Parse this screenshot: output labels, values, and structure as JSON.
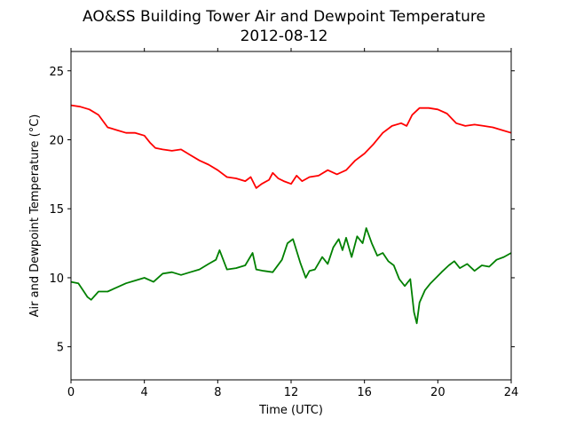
{
  "chart_data": {
    "type": "line",
    "title": "AO&SS Building Tower Air and Dewpoint Temperature",
    "subtitle": "2012-08-12",
    "xlabel": "Time (UTC)",
    "ylabel": "Air and Dewpoint Temperature (°C)",
    "xlim": [
      0,
      24
    ],
    "ylim": [
      2.6,
      26.4
    ],
    "xticks": [
      0,
      4,
      8,
      12,
      16,
      20,
      24
    ],
    "yticks": [
      5,
      10,
      15,
      20,
      25
    ],
    "grid": false,
    "series": [
      {
        "color": "#ff0000",
        "x": [
          0,
          0.5,
          1.0,
          1.5,
          2.0,
          2.5,
          3.0,
          3.5,
          4.0,
          4.3,
          4.6,
          5.0,
          5.5,
          6.0,
          6.5,
          7.0,
          7.5,
          8.0,
          8.5,
          9.0,
          9.5,
          9.8,
          10.1,
          10.4,
          10.8,
          11.0,
          11.3,
          11.6,
          12.0,
          12.3,
          12.6,
          13.0,
          13.5,
          14.0,
          14.5,
          15.0,
          15.5,
          16.0,
          16.5,
          17.0,
          17.5,
          18.0,
          18.3,
          18.6,
          19.0,
          19.5,
          20.0,
          20.5,
          21.0,
          21.5,
          22.0,
          22.5,
          23.0,
          23.5,
          24.0
        ],
        "values": [
          22.5,
          22.4,
          22.2,
          21.8,
          20.9,
          20.7,
          20.5,
          20.5,
          20.3,
          19.8,
          19.4,
          19.3,
          19.2,
          19.3,
          18.9,
          18.5,
          18.2,
          17.8,
          17.3,
          17.2,
          17.0,
          17.3,
          16.5,
          16.8,
          17.1,
          17.6,
          17.2,
          17.0,
          16.8,
          17.4,
          17.0,
          17.3,
          17.4,
          17.8,
          17.5,
          17.8,
          18.5,
          19.0,
          19.7,
          20.5,
          21.0,
          21.2,
          21.0,
          21.8,
          22.3,
          22.3,
          22.2,
          21.9,
          21.2,
          21.0,
          21.1,
          21.0,
          20.9,
          20.7,
          20.5
        ]
      },
      {
        "color": "#008000",
        "x": [
          0,
          0.4,
          0.7,
          0.9,
          1.1,
          1.5,
          2.0,
          2.5,
          3.0,
          3.5,
          4.0,
          4.5,
          5.0,
          5.5,
          6.0,
          6.5,
          7.0,
          7.5,
          7.9,
          8.1,
          8.5,
          9.0,
          9.5,
          9.9,
          10.1,
          10.5,
          11.0,
          11.5,
          11.8,
          12.1,
          12.5,
          12.8,
          13.0,
          13.3,
          13.7,
          14.0,
          14.3,
          14.6,
          14.8,
          15.0,
          15.3,
          15.6,
          15.9,
          16.1,
          16.4,
          16.7,
          17.0,
          17.3,
          17.6,
          17.9,
          18.2,
          18.5,
          18.7,
          18.85,
          19.0,
          19.3,
          19.6,
          19.9,
          20.2,
          20.6,
          20.9,
          21.2,
          21.6,
          22.0,
          22.4,
          22.8,
          23.2,
          23.6,
          24.0
        ],
        "values": [
          9.7,
          9.6,
          9.0,
          8.6,
          8.4,
          9.0,
          9.0,
          9.3,
          9.6,
          9.8,
          10.0,
          9.7,
          10.3,
          10.4,
          10.2,
          10.4,
          10.6,
          11.0,
          11.3,
          12.0,
          10.6,
          10.7,
          10.9,
          11.8,
          10.6,
          10.5,
          10.4,
          11.3,
          12.5,
          12.8,
          11.1,
          10.0,
          10.5,
          10.6,
          11.5,
          11.0,
          12.2,
          12.8,
          12.0,
          12.9,
          11.5,
          13.0,
          12.5,
          13.6,
          12.5,
          11.6,
          11.8,
          11.2,
          10.9,
          9.9,
          9.4,
          9.9,
          7.5,
          6.7,
          8.2,
          9.1,
          9.6,
          10.0,
          10.4,
          10.9,
          11.2,
          10.7,
          11.0,
          10.5,
          10.9,
          10.8,
          11.3,
          11.5,
          11.8
        ]
      }
    ]
  }
}
